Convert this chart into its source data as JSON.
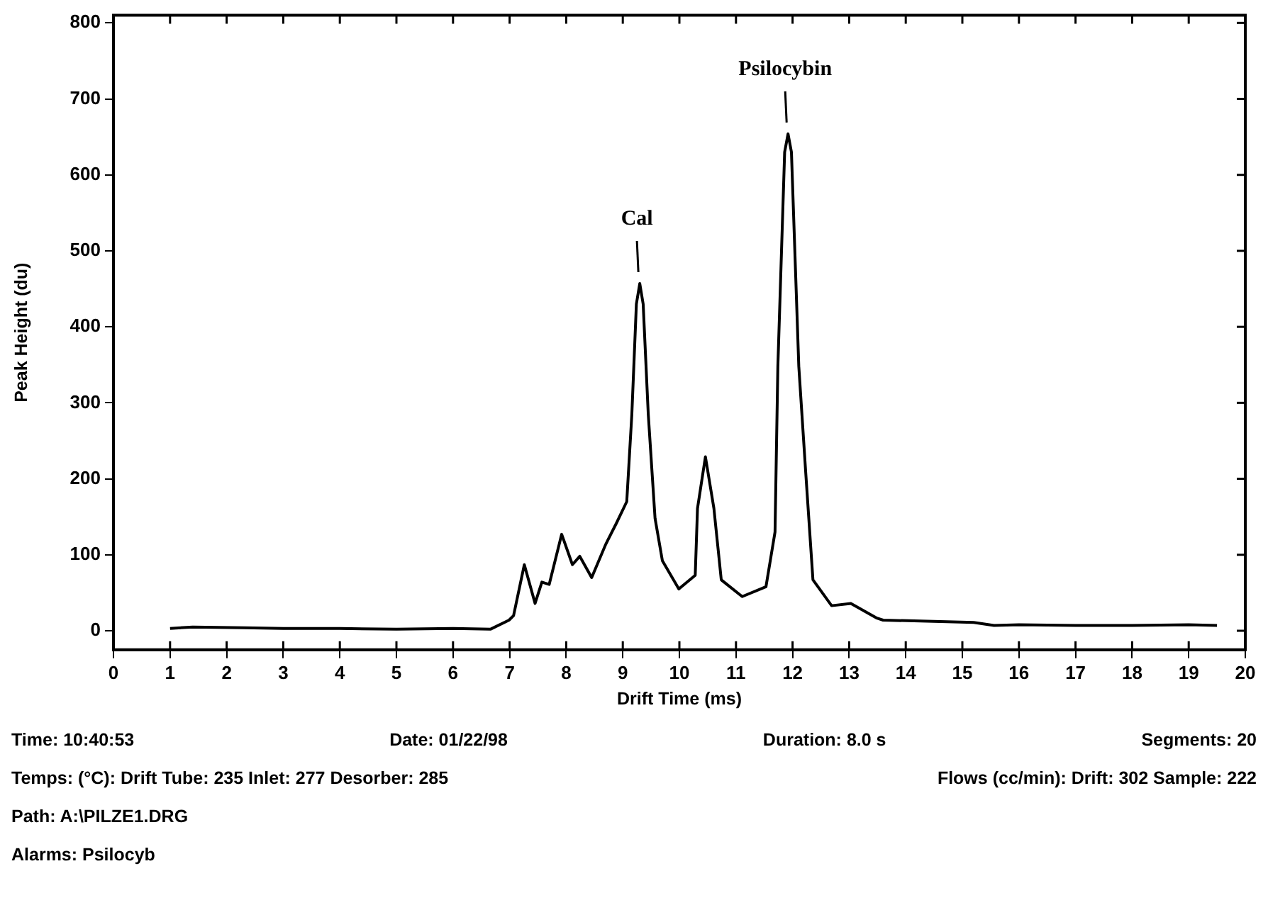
{
  "chart_data": {
    "type": "line",
    "xlabel": "Drift Time (ms)",
    "ylabel": "Peak Height (du)",
    "xlim": [
      0,
      20
    ],
    "xticks": [
      0,
      1,
      2,
      3,
      4,
      5,
      6,
      7,
      8,
      9,
      10,
      11,
      12,
      13,
      14,
      15,
      16,
      17,
      18,
      19,
      20
    ],
    "ylim": [
      -25,
      810
    ],
    "yticks": [
      0,
      100,
      200,
      300,
      400,
      500,
      600,
      700,
      800
    ],
    "grid": false,
    "legend": false,
    "marker": "none",
    "line_style": "solid",
    "series": [
      {
        "color": "#000000",
        "x": [
          1.0,
          1.4,
          2.3,
          3,
          4,
          5,
          6,
          6.66,
          6.99,
          7.07,
          7.26,
          7.45,
          7.57,
          7.7,
          7.92,
          8.11,
          8.24,
          8.45,
          8.7,
          8.89,
          9.07,
          9.16,
          9.24,
          9.3,
          9.36,
          9.45,
          9.57,
          9.7,
          9.99,
          10.28,
          10.32,
          10.46,
          10.61,
          10.74,
          11.11,
          11.53,
          11.69,
          11.74,
          11.86,
          11.92,
          11.98,
          12.11,
          12.23,
          12.36,
          12.69,
          13.03,
          13.48,
          13.6,
          15.2,
          15.56,
          16,
          17,
          18,
          19,
          19.5
        ],
        "values": [
          3,
          5,
          4,
          3,
          3,
          2,
          3,
          2,
          14,
          20,
          87,
          36,
          64,
          61,
          127,
          87,
          98,
          70,
          114,
          142,
          170,
          285,
          430,
          457,
          430,
          285,
          148,
          92,
          55,
          73,
          161,
          229,
          161,
          67,
          45,
          58,
          130,
          348,
          630,
          654,
          630,
          348,
          211,
          67,
          33,
          36,
          17,
          14,
          11,
          7,
          8,
          7,
          7,
          8,
          7
        ]
      }
    ],
    "annotations": [
      {
        "text": "Cal",
        "x": 9.3,
        "y": 457
      },
      {
        "text": "Psilocybin",
        "x": 11.92,
        "y": 654
      },
      "Time: 10:40:53",
      "Date: 01/22/98",
      "Duration: 8.0 s",
      "Segments: 20",
      "Temps: (°C): Drift Tube: 235  Inlet: 277  Desorber: 285",
      "Flows (cc/min): Drift: 302  Sample: 222",
      "Path: A:\\PILZE1.DRG",
      "Alarms: Psilocyb"
    ]
  }
}
